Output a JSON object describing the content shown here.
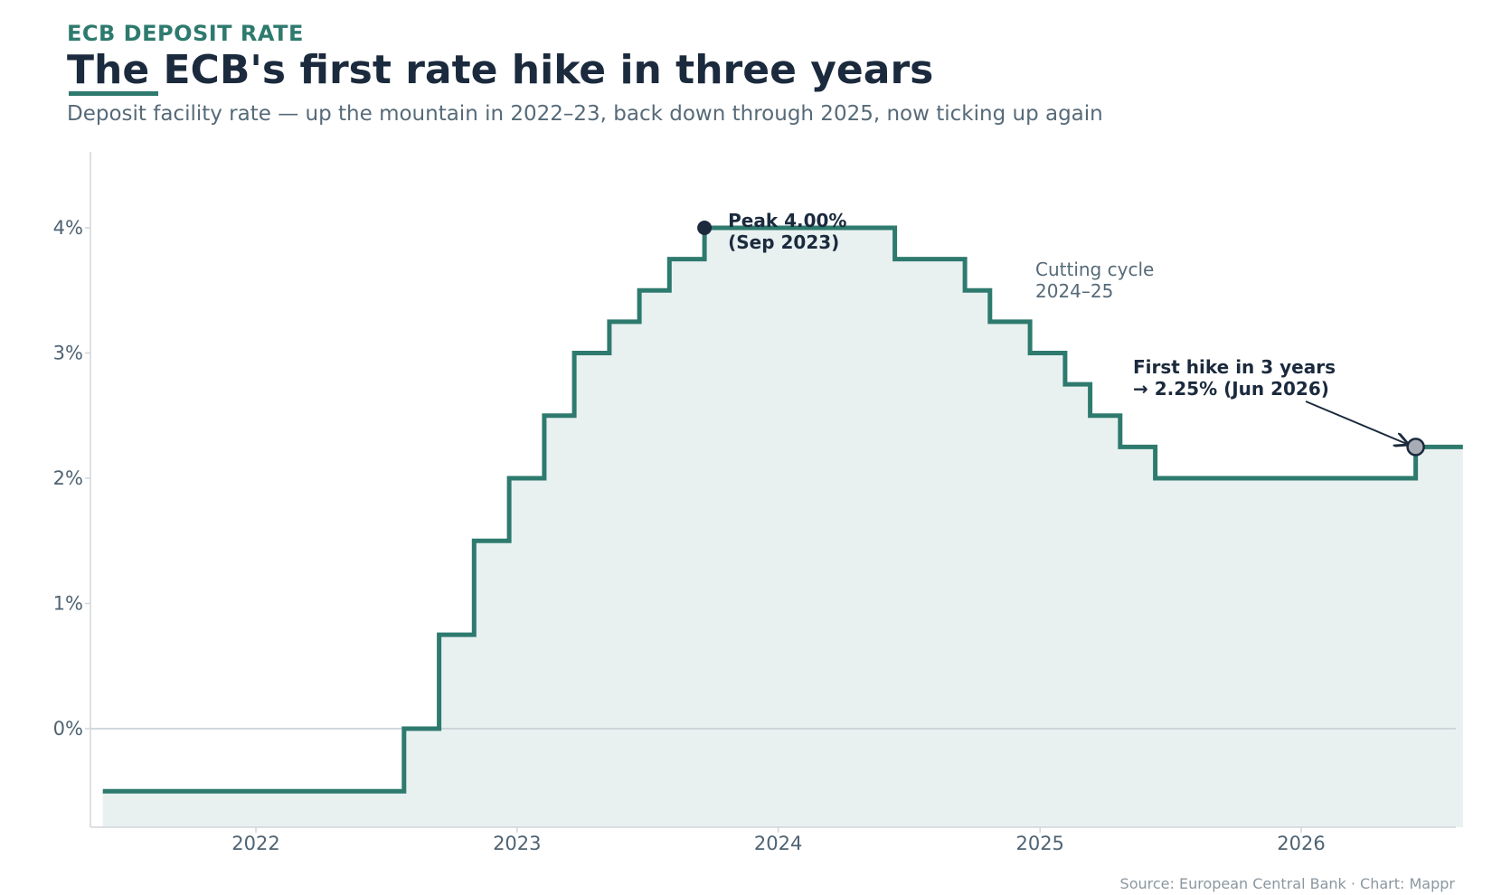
{
  "header": {
    "kicker": "ECB DEPOSIT RATE",
    "title": "The ECB's first rate hike in three years",
    "subtitle": "Deposit facility rate — up the mountain in 2022–23, back down through 2025, now ticking up again"
  },
  "footer": {
    "source": "Source: European Central Bank · Chart: Mappr"
  },
  "colors": {
    "line": "#2e7a6e",
    "area": "#e8f1f0",
    "peak_marker": "#1b2a3d",
    "latest_marker": "#a8adb5",
    "zero_line": "#c4ccd1",
    "axis": "#d0d6da"
  },
  "chart_data": {
    "type": "line",
    "step": "post",
    "title": "The ECB's first rate hike in three years",
    "xlabel": "",
    "ylabel": "",
    "x_ticks": [
      "2022",
      "2023",
      "2024",
      "2025",
      "2026"
    ],
    "y_ticks": [
      "0%",
      "1%",
      "2%",
      "3%",
      "4%"
    ],
    "y_tick_values": [
      0,
      1,
      2,
      3,
      4
    ],
    "xlim": [
      "2021-06-01",
      "2026-08-15"
    ],
    "ylim": [
      -0.8,
      4.6
    ],
    "grid": false,
    "series": [
      {
        "name": "",
        "points": [
          {
            "date": "2021-06-01",
            "value": -0.5
          },
          {
            "date": "2022-07-27",
            "value": 0.0
          },
          {
            "date": "2022-09-14",
            "value": 0.75
          },
          {
            "date": "2022-11-02",
            "value": 1.5
          },
          {
            "date": "2022-12-21",
            "value": 2.0
          },
          {
            "date": "2023-02-08",
            "value": 2.5
          },
          {
            "date": "2023-03-22",
            "value": 3.0
          },
          {
            "date": "2023-05-10",
            "value": 3.25
          },
          {
            "date": "2023-06-21",
            "value": 3.5
          },
          {
            "date": "2023-08-02",
            "value": 3.75
          },
          {
            "date": "2023-09-20",
            "value": 4.0
          },
          {
            "date": "2024-06-12",
            "value": 3.75
          },
          {
            "date": "2024-09-18",
            "value": 3.5
          },
          {
            "date": "2024-10-23",
            "value": 3.25
          },
          {
            "date": "2024-12-18",
            "value": 3.0
          },
          {
            "date": "2025-02-05",
            "value": 2.75
          },
          {
            "date": "2025-03-12",
            "value": 2.5
          },
          {
            "date": "2025-04-23",
            "value": 2.25
          },
          {
            "date": "2025-06-11",
            "value": 2.0
          },
          {
            "date": "2026-06-10",
            "value": 2.25
          },
          {
            "date": "2026-08-15",
            "value": 2.25
          }
        ]
      }
    ],
    "annotations": [
      {
        "id": "peak",
        "lines": [
          "Peak 4.00%",
          "(Sep 2023)"
        ],
        "point": {
          "date": "2023-09-20",
          "value": 4.0
        }
      },
      {
        "id": "cutting",
        "lines": [
          "Cutting cycle",
          "2024–25"
        ]
      },
      {
        "id": "hike",
        "lines": [
          "First hike in 3 years",
          "→ 2.25% (Jun 2026)"
        ],
        "point": {
          "date": "2026-06-10",
          "value": 2.25
        }
      }
    ]
  }
}
